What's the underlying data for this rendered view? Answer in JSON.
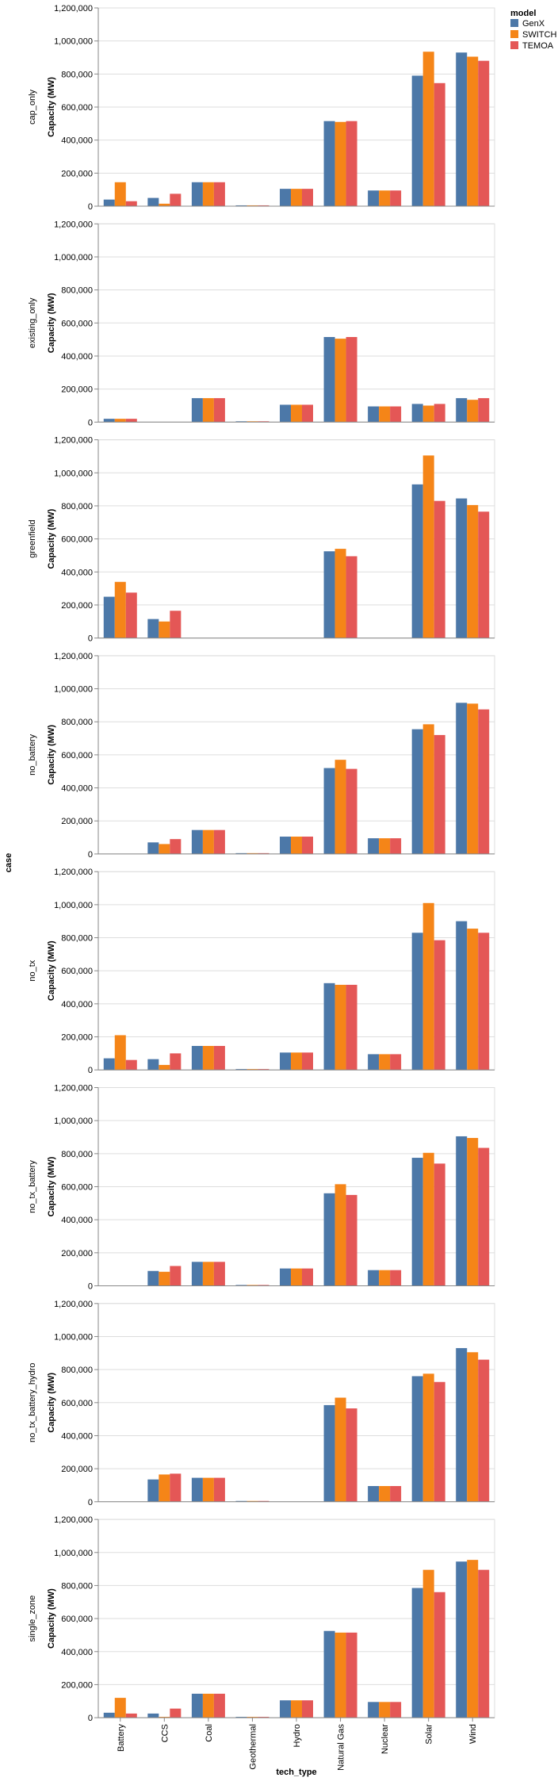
{
  "chart_data": {
    "type": "bar",
    "facet_title": "case",
    "xlabel": "tech_type",
    "ylabel": "Capacity (MW)",
    "ylim": [
      0,
      1200000
    ],
    "yticks": [
      0,
      200000,
      400000,
      600000,
      800000,
      1000000,
      1200000
    ],
    "ytick_labels": [
      "0",
      "200,000",
      "400,000",
      "600,000",
      "800,000",
      "1,000,000",
      "1,200,000"
    ],
    "grid": true,
    "categories": [
      "Battery",
      "CCS",
      "Coal",
      "Geothermal",
      "Hydro",
      "Natural Gas",
      "Nuclear",
      "Solar",
      "Wind"
    ],
    "legend": {
      "title": "model",
      "position": "top-right",
      "entries": [
        {
          "name": "GenX",
          "color": "#4c78a8"
        },
        {
          "name": "SWITCH",
          "color": "#f58518"
        },
        {
          "name": "TEMOA",
          "color": "#e45756"
        }
      ]
    },
    "facets": [
      {
        "case": "cap_only",
        "series": [
          {
            "name": "GenX",
            "values": [
              40000,
              50000,
              145000,
              5000,
              105000,
              515000,
              95000,
              790000,
              930000
            ]
          },
          {
            "name": "SWITCH",
            "values": [
              145000,
              15000,
              145000,
              5000,
              105000,
              510000,
              95000,
              935000,
              905000
            ]
          },
          {
            "name": "TEMOA",
            "values": [
              30000,
              75000,
              145000,
              5000,
              105000,
              515000,
              95000,
              745000,
              880000
            ]
          }
        ]
      },
      {
        "case": "existing_only",
        "series": [
          {
            "name": "GenX",
            "values": [
              20000,
              0,
              145000,
              5000,
              105000,
              515000,
              95000,
              110000,
              145000
            ]
          },
          {
            "name": "SWITCH",
            "values": [
              20000,
              0,
              145000,
              5000,
              105000,
              505000,
              95000,
              100000,
              135000
            ]
          },
          {
            "name": "TEMOA",
            "values": [
              20000,
              0,
              145000,
              5000,
              105000,
              515000,
              95000,
              110000,
              145000
            ]
          }
        ]
      },
      {
        "case": "greenfield",
        "series": [
          {
            "name": "GenX",
            "values": [
              250000,
              115000,
              0,
              0,
              0,
              525000,
              0,
              930000,
              845000
            ]
          },
          {
            "name": "SWITCH",
            "values": [
              340000,
              100000,
              0,
              0,
              0,
              540000,
              0,
              1105000,
              805000
            ]
          },
          {
            "name": "TEMOA",
            "values": [
              275000,
              165000,
              0,
              0,
              0,
              495000,
              0,
              830000,
              765000
            ]
          }
        ]
      },
      {
        "case": "no_battery",
        "series": [
          {
            "name": "GenX",
            "values": [
              0,
              70000,
              145000,
              5000,
              105000,
              520000,
              95000,
              755000,
              915000
            ]
          },
          {
            "name": "SWITCH",
            "values": [
              0,
              60000,
              145000,
              5000,
              105000,
              570000,
              95000,
              785000,
              910000
            ]
          },
          {
            "name": "TEMOA",
            "values": [
              0,
              90000,
              145000,
              5000,
              105000,
              515000,
              95000,
              720000,
              875000
            ]
          }
        ]
      },
      {
        "case": "no_tx",
        "series": [
          {
            "name": "GenX",
            "values": [
              70000,
              65000,
              145000,
              5000,
              105000,
              525000,
              95000,
              830000,
              900000
            ]
          },
          {
            "name": "SWITCH",
            "values": [
              210000,
              30000,
              145000,
              5000,
              105000,
              515000,
              95000,
              1010000,
              855000
            ]
          },
          {
            "name": "TEMOA",
            "values": [
              60000,
              100000,
              145000,
              5000,
              105000,
              515000,
              95000,
              785000,
              830000
            ]
          }
        ]
      },
      {
        "case": "no_tx_battery",
        "series": [
          {
            "name": "GenX",
            "values": [
              0,
              90000,
              145000,
              5000,
              105000,
              560000,
              95000,
              775000,
              905000
            ]
          },
          {
            "name": "SWITCH",
            "values": [
              0,
              85000,
              145000,
              5000,
              105000,
              615000,
              95000,
              805000,
              895000
            ]
          },
          {
            "name": "TEMOA",
            "values": [
              0,
              120000,
              145000,
              5000,
              105000,
              550000,
              95000,
              740000,
              835000
            ]
          }
        ]
      },
      {
        "case": "no_tx_battery_hydro",
        "series": [
          {
            "name": "GenX",
            "values": [
              0,
              135000,
              145000,
              5000,
              0,
              585000,
              95000,
              760000,
              930000
            ]
          },
          {
            "name": "SWITCH",
            "values": [
              0,
              165000,
              145000,
              5000,
              0,
              630000,
              95000,
              775000,
              905000
            ]
          },
          {
            "name": "TEMOA",
            "values": [
              0,
              170000,
              145000,
              5000,
              0,
              565000,
              95000,
              725000,
              860000
            ]
          }
        ]
      },
      {
        "case": "single_zone",
        "series": [
          {
            "name": "GenX",
            "values": [
              30000,
              25000,
              145000,
              5000,
              105000,
              525000,
              95000,
              785000,
              945000
            ]
          },
          {
            "name": "SWITCH",
            "values": [
              120000,
              5000,
              145000,
              5000,
              105000,
              515000,
              95000,
              895000,
              955000
            ]
          },
          {
            "name": "TEMOA",
            "values": [
              25000,
              55000,
              145000,
              5000,
              105000,
              515000,
              95000,
              760000,
              895000
            ]
          }
        ]
      }
    ]
  }
}
